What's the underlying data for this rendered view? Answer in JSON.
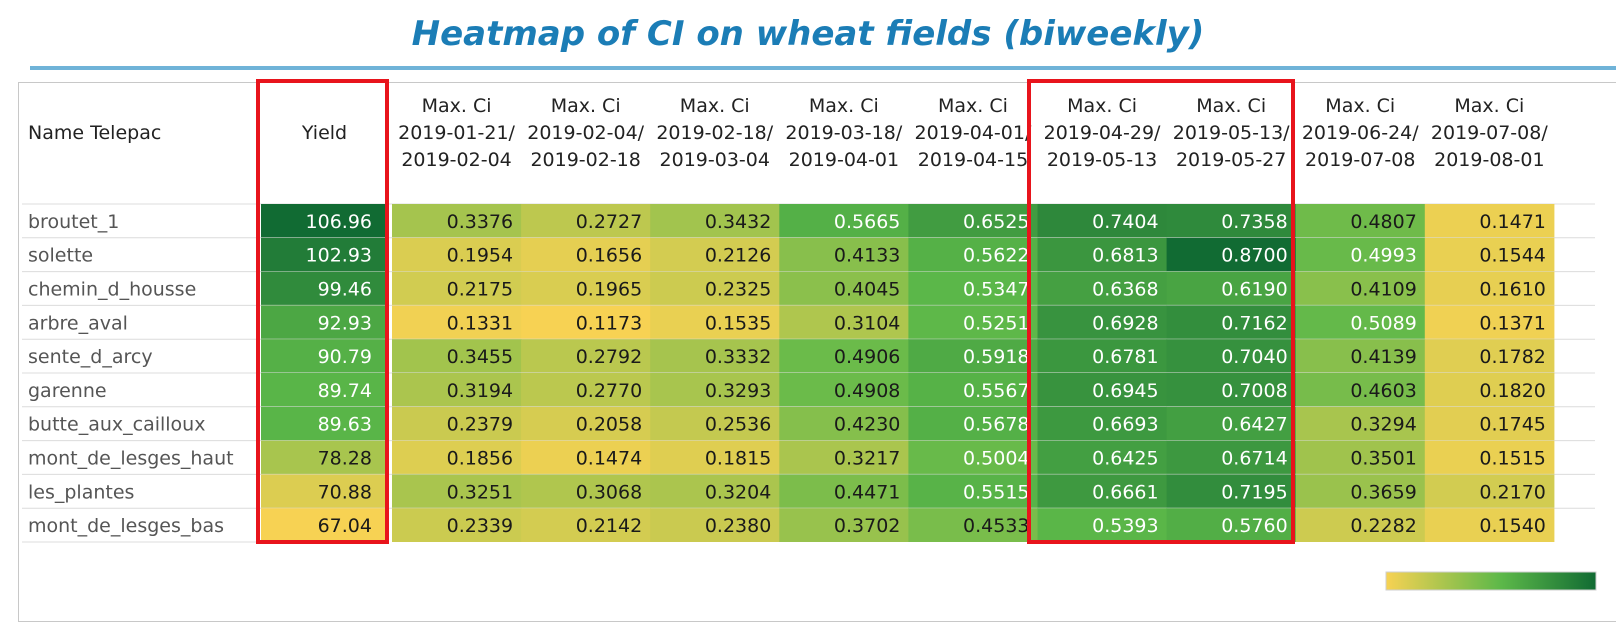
{
  "title": "Heatmap of CI on wheat fields (biweekly)",
  "colors": {
    "title": "#1b7db6",
    "scale_low": "#f7d253",
    "scale_mid": "#5cb849",
    "scale_high": "#116b33",
    "highlight_box": "#e8141c"
  },
  "chart_data": {
    "type": "heatmap",
    "title": "Heatmap of CI on wheat fields (biweekly)",
    "row_header": "Name Telepac",
    "yield_header": "Yield",
    "ci_header_line1": "Max. Ci",
    "columns": [
      {
        "start": "2019-01-21/",
        "end": "2019-02-04"
      },
      {
        "start": "2019-02-04/",
        "end": "2019-02-18"
      },
      {
        "start": "2019-02-18/",
        "end": "2019-03-04"
      },
      {
        "start": "2019-03-18/",
        "end": "2019-04-01"
      },
      {
        "start": "2019-04-01/",
        "end": "2019-04-15"
      },
      {
        "start": "2019-04-29/",
        "end": "2019-05-13"
      },
      {
        "start": "2019-05-13/",
        "end": "2019-05-27"
      },
      {
        "start": "2019-06-24/",
        "end": "2019-07-08"
      },
      {
        "start": "2019-07-08/",
        "end": "2019-08-01"
      }
    ],
    "rows": [
      {
        "name": "broutet_1",
        "yield": "106.96",
        "ci": [
          "0.3376",
          "0.2727",
          "0.3432",
          "0.5665",
          "0.6525",
          "0.7404",
          "0.7358",
          "0.4807",
          "0.1471"
        ]
      },
      {
        "name": "solette",
        "yield": "102.93",
        "ci": [
          "0.1954",
          "0.1656",
          "0.2126",
          "0.4133",
          "0.5622",
          "0.6813",
          "0.8700",
          "0.4993",
          "0.1544"
        ]
      },
      {
        "name": "chemin_d_housse",
        "yield": "99.46",
        "ci": [
          "0.2175",
          "0.1965",
          "0.2325",
          "0.4045",
          "0.5347",
          "0.6368",
          "0.6190",
          "0.4109",
          "0.1610"
        ]
      },
      {
        "name": "arbre_aval",
        "yield": "92.93",
        "ci": [
          "0.1331",
          "0.1173",
          "0.1535",
          "0.3104",
          "0.5251",
          "0.6928",
          "0.7162",
          "0.5089",
          "0.1371"
        ]
      },
      {
        "name": "sente_d_arcy",
        "yield": "90.79",
        "ci": [
          "0.3455",
          "0.2792",
          "0.3332",
          "0.4906",
          "0.5918",
          "0.6781",
          "0.7040",
          "0.4139",
          "0.1782"
        ]
      },
      {
        "name": "garenne",
        "yield": "89.74",
        "ci": [
          "0.3194",
          "0.2770",
          "0.3293",
          "0.4908",
          "0.5567",
          "0.6945",
          "0.7008",
          "0.4603",
          "0.1820"
        ]
      },
      {
        "name": "butte_aux_cailloux",
        "yield": "89.63",
        "ci": [
          "0.2379",
          "0.2058",
          "0.2536",
          "0.4230",
          "0.5678",
          "0.6693",
          "0.6427",
          "0.3294",
          "0.1745"
        ]
      },
      {
        "name": "mont_de_lesges_haut",
        "yield": "78.28",
        "ci": [
          "0.1856",
          "0.1474",
          "0.1815",
          "0.3217",
          "0.5004",
          "0.6425",
          "0.6714",
          "0.3501",
          "0.1515"
        ]
      },
      {
        "name": "les_plantes",
        "yield": "70.88",
        "ci": [
          "0.3251",
          "0.3068",
          "0.3204",
          "0.4471",
          "0.5515",
          "0.6661",
          "0.7195",
          "0.3659",
          "0.2170"
        ]
      },
      {
        "name": "mont_de_lesges_bas",
        "yield": "67.04",
        "ci": [
          "0.2339",
          "0.2142",
          "0.2380",
          "0.3702",
          "0.4533",
          "0.5393",
          "0.5760",
          "0.2282",
          "0.1540"
        ]
      }
    ],
    "yield_range": [
      67.04,
      106.96
    ],
    "ci_range": [
      0.1173,
      0.87
    ],
    "highlighted_columns": [
      "Yield",
      "2019-04-29/2019-05-13",
      "2019-05-13/2019-05-27"
    ],
    "legend": "bottom-right color gradient, low (yellow) to high (green)"
  }
}
